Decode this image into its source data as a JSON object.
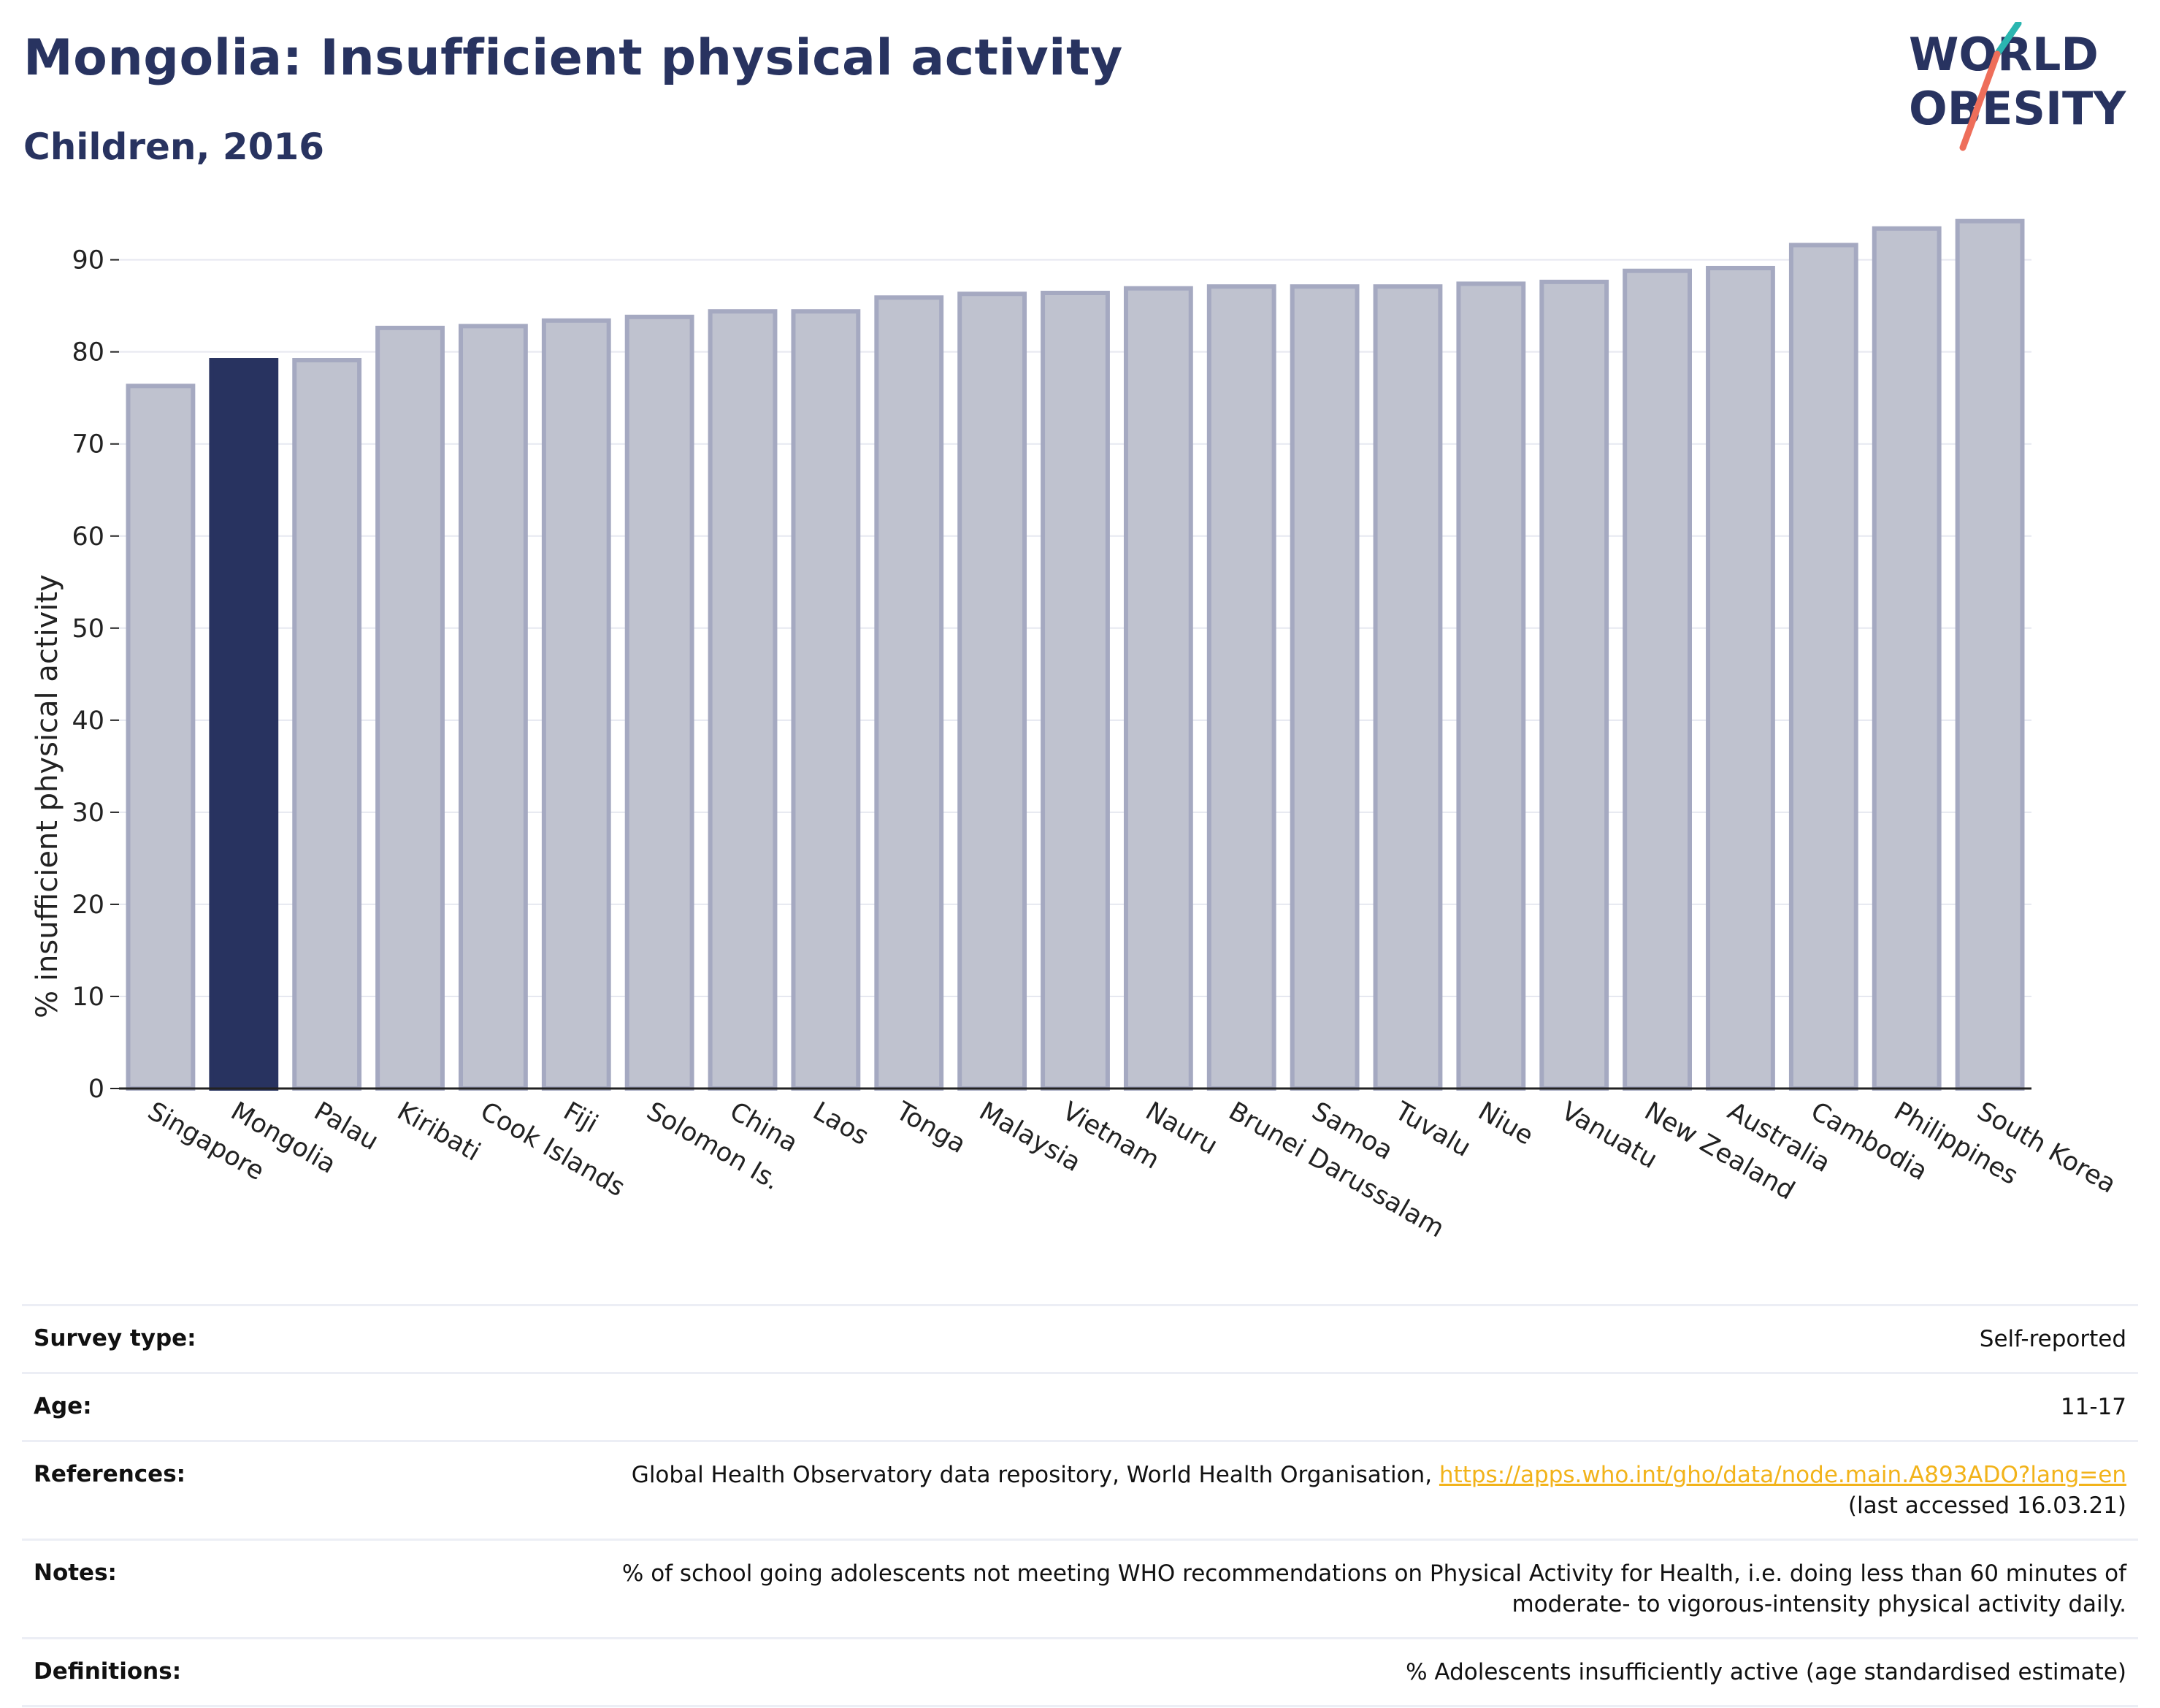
{
  "header": {
    "title": "Mongolia: Insufficient physical activity",
    "subtitle": "Children, 2016"
  },
  "logo": {
    "line1": "WORLD",
    "line2": "OBESITY",
    "text_color": "#283360",
    "accent_teal": "#2bb6b0",
    "accent_coral": "#ee6e5a"
  },
  "colors": {
    "highlight_bar": "#283360",
    "other_bar_fill": "#bfc2cf",
    "other_bar_stroke": "#a5a9c1",
    "link": "#f2b31a"
  },
  "chart_data": {
    "type": "bar",
    "title": "Mongolia: Insufficient physical activity",
    "subtitle": "Children, 2016",
    "xlabel": "",
    "ylabel": "% insufficient physical activity",
    "ylim": [
      0,
      96
    ],
    "yticks": [
      0,
      10,
      20,
      30,
      40,
      50,
      60,
      70,
      80,
      90
    ],
    "grid": true,
    "highlight": "Mongolia",
    "categories": [
      "Singapore",
      "Mongolia",
      "Palau",
      "Kiribati",
      "Cook Islands",
      "Fiji",
      "Solomon Is.",
      "China",
      "Laos",
      "Tonga",
      "Malaysia",
      "Vietnam",
      "Nauru",
      "Brunei Darussalam",
      "Samoa",
      "Tuvalu",
      "Niue",
      "Vanuatu",
      "New Zealand",
      "Australia",
      "Cambodia",
      "Philippines",
      "South Korea"
    ],
    "values": [
      76.3,
      79.1,
      79.1,
      82.6,
      82.8,
      83.4,
      83.8,
      84.4,
      84.4,
      85.9,
      86.3,
      86.4,
      86.9,
      87.1,
      87.1,
      87.1,
      87.4,
      87.6,
      88.8,
      89.1,
      91.6,
      93.4,
      94.2
    ]
  },
  "meta": {
    "survey_type": {
      "label": "Survey type:",
      "value": "Self-reported"
    },
    "age": {
      "label": "Age:",
      "value": "11-17"
    },
    "references": {
      "label": "References:",
      "text": "Global Health Observatory data repository, World Health Organisation, ",
      "link": "https://apps.who.int/gho/data/node.main.A893ADO?lang=en",
      "accessed": "(last accessed 16.03.21)"
    },
    "notes": {
      "label": "Notes:",
      "line1": "% of school going adolescents not meeting WHO recommendations on Physical Activity for Health, i.e. doing less than 60 minutes of",
      "line2": "moderate- to vigorous-intensity physical activity daily."
    },
    "definitions": {
      "label": "Definitions:",
      "value": "% Adolescents insufficiently active (age standardised estimate)"
    }
  }
}
